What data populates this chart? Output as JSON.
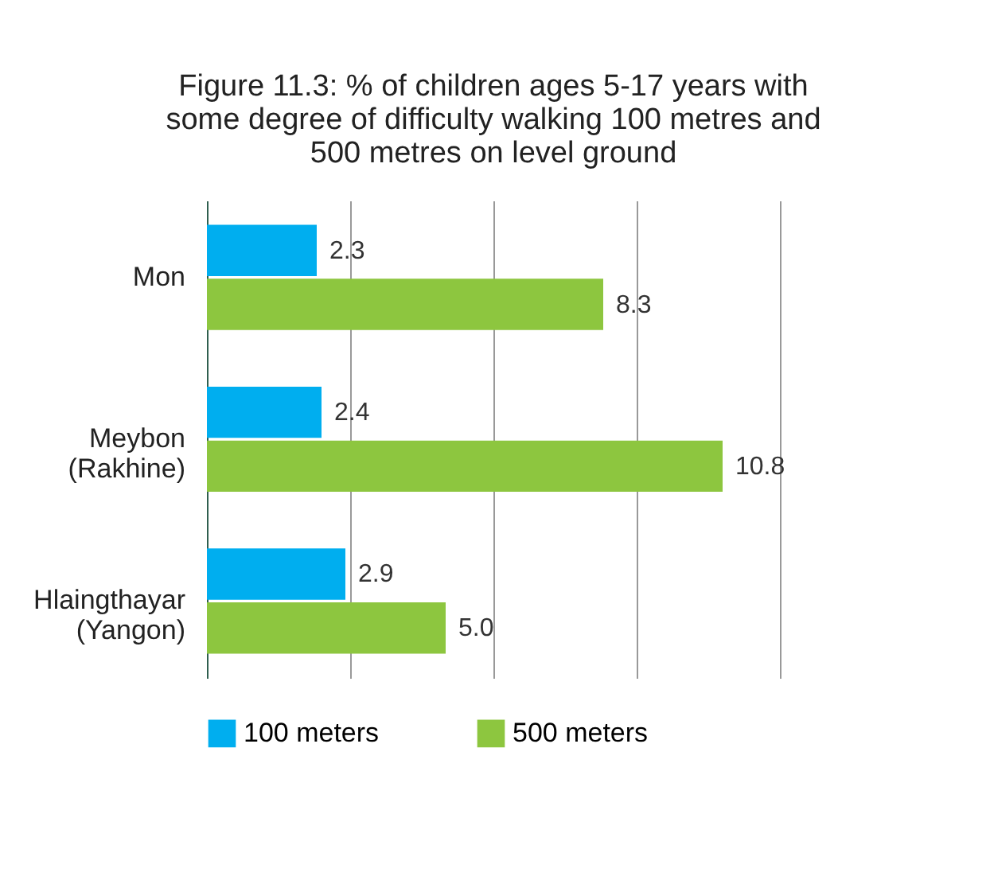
{
  "chart_data": {
    "type": "bar",
    "orientation": "horizontal",
    "title": "Figure 11.3: % of children ages 5-17 years with some degree of difficulty walking 100 metres and 500 metres on level ground",
    "categories": [
      "Mon",
      "Meybon\n(Rakhine)",
      "Hlaingthayar\n(Yangon)"
    ],
    "series": [
      {
        "name": "100 meters",
        "color": "#00aeef",
        "values": [
          2.3,
          2.4,
          2.9
        ],
        "value_labels": [
          "2.3",
          "2.4",
          "2.9"
        ]
      },
      {
        "name": "500 meters",
        "color": "#8dc63f",
        "values": [
          8.3,
          10.8,
          5.0
        ],
        "value_labels": [
          "8.3",
          "10.8",
          "5.0"
        ]
      }
    ],
    "xlim": [
      0,
      12
    ],
    "xticks": [
      {
        "value": 0,
        "label": null
      },
      {
        "value": 3,
        "label": null
      },
      {
        "value": 6,
        "label": null
      },
      {
        "value": 9,
        "label": null
      },
      {
        "value": 12,
        "label": null
      }
    ],
    "tick_labels": "y",
    "grid": "x",
    "legend": "bottom"
  }
}
